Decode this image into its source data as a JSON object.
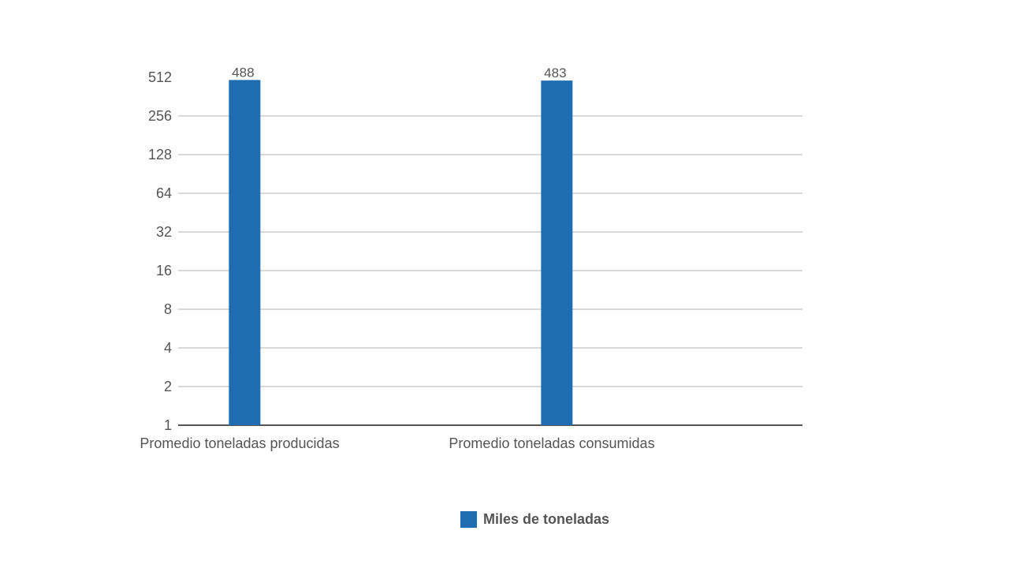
{
  "chart_data": {
    "type": "bar",
    "yscale": "log2",
    "ylim": [
      1,
      512
    ],
    "yticks": [
      1,
      2,
      4,
      8,
      16,
      32,
      64,
      128,
      256,
      512
    ],
    "grid": true,
    "legend_position": "bottom-center",
    "categories": [
      "Promedio toneladas producidas",
      "Promedio toneladas consumidas"
    ],
    "series": [
      {
        "name": "Miles de toneladas",
        "values": [
          488,
          483
        ],
        "color": "#1f6db1"
      }
    ]
  },
  "colors": {
    "bar": "#1f6db1",
    "grid": "#d9d9d9",
    "axis": "#555555",
    "text": "#555555"
  }
}
